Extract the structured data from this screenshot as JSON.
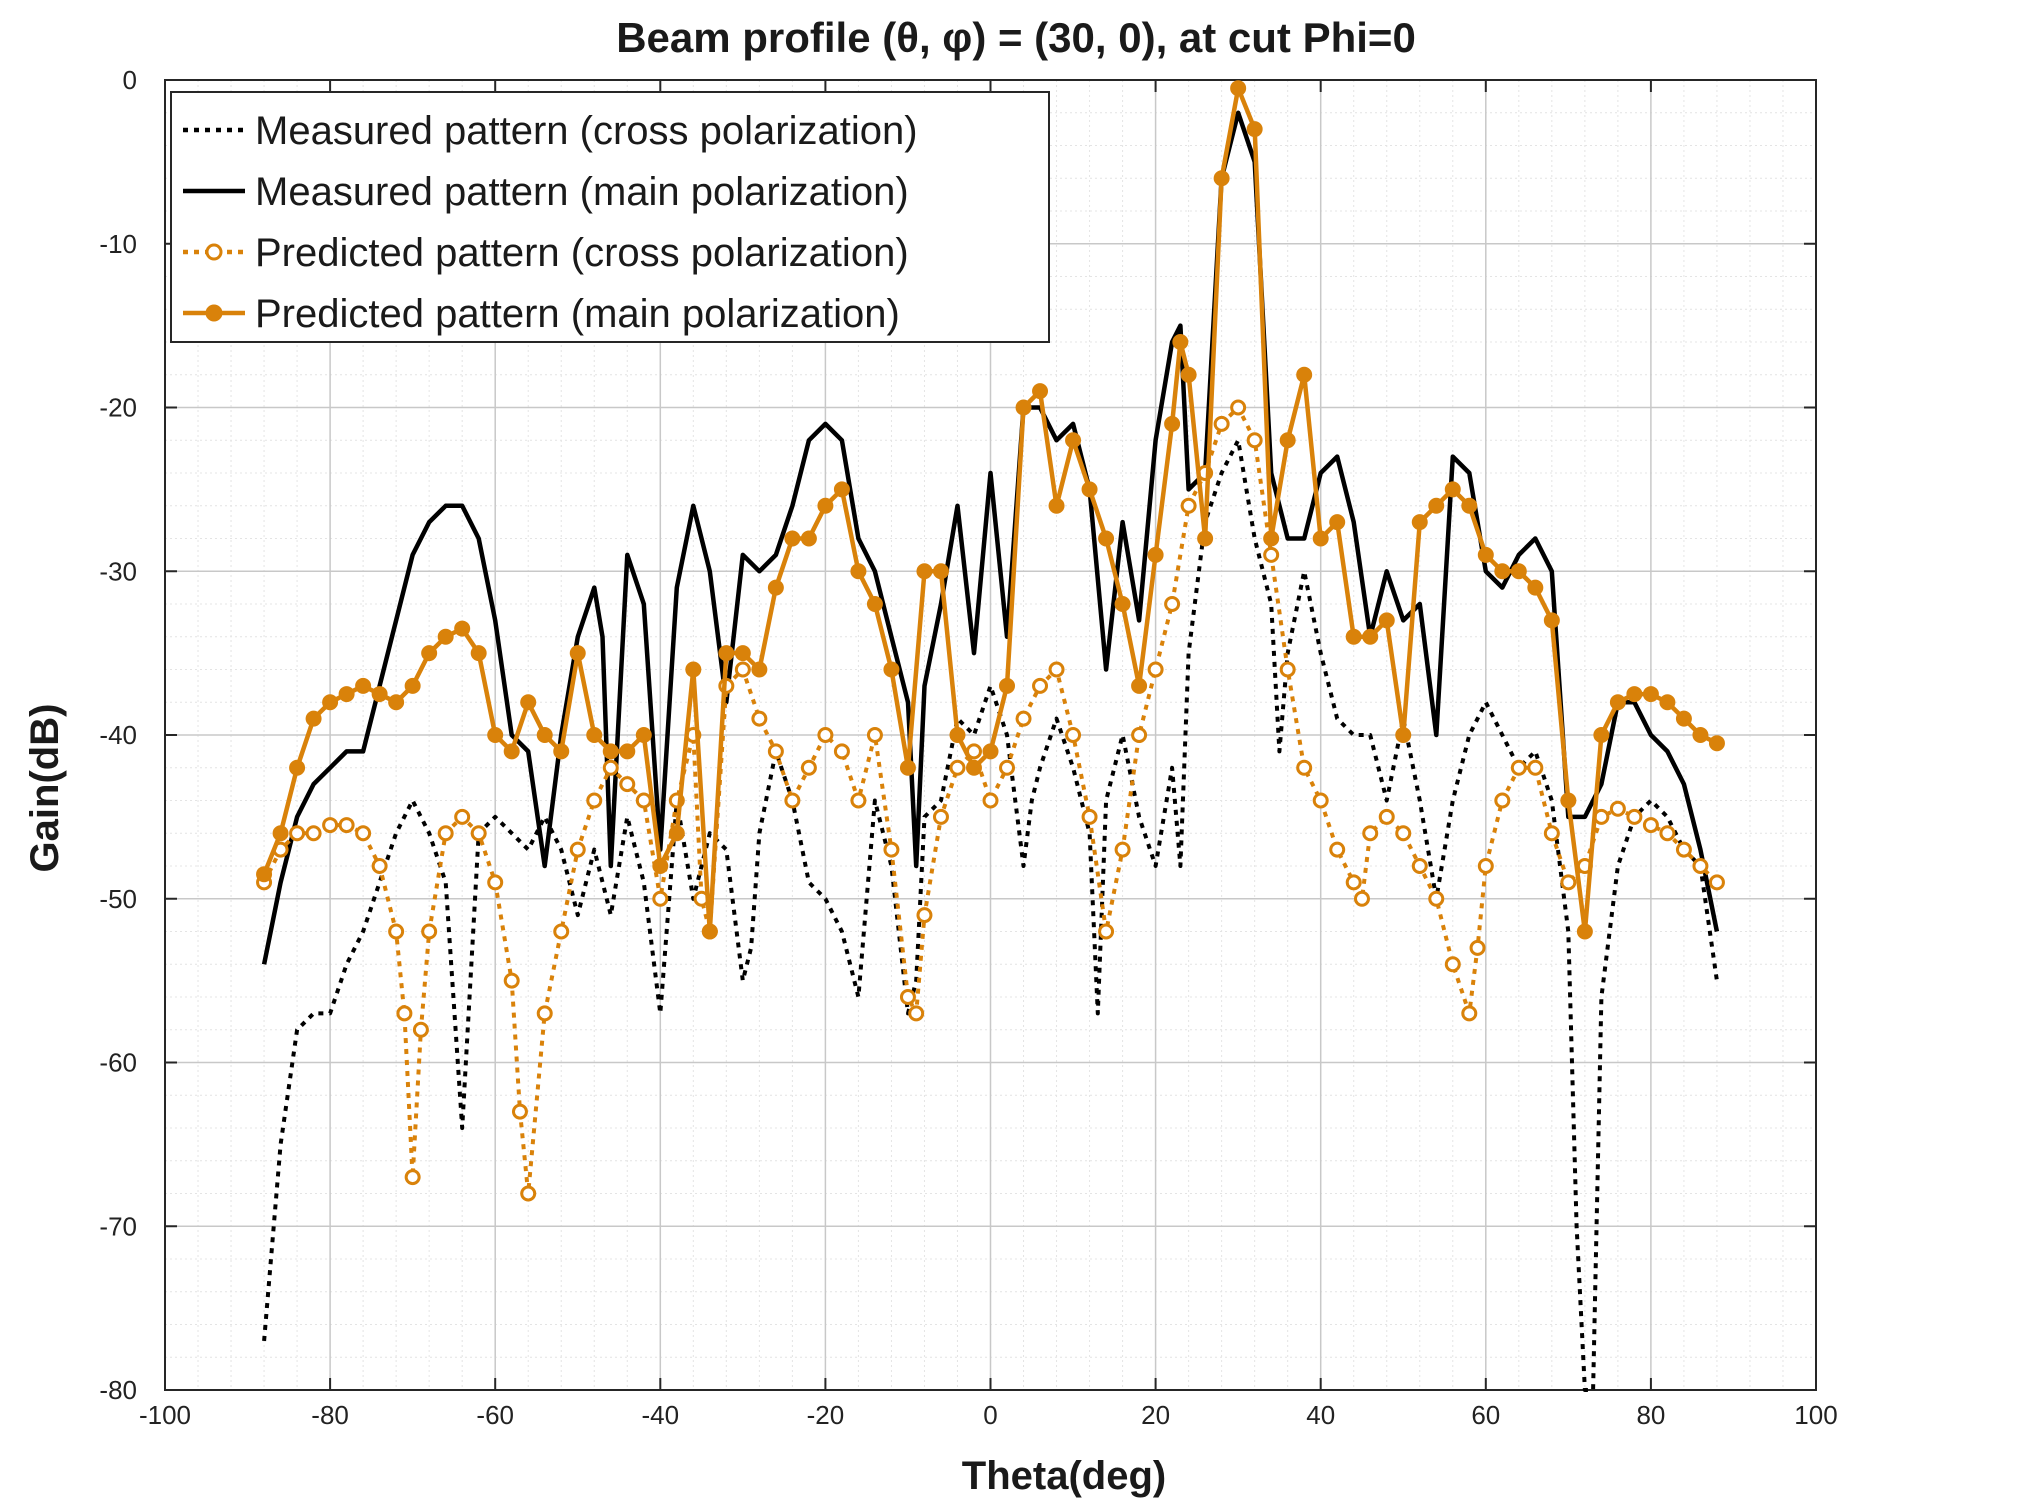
{
  "chart_data": {
    "type": "line",
    "title": "Beam  profile (θ, φ) = (30, 0), at cut Phi=0",
    "xlabel": "Theta(deg)",
    "ylabel": "Gain(dB)",
    "xlim": [
      -100,
      100
    ],
    "ylim": [
      -80,
      0
    ],
    "xticks": [
      -100,
      -80,
      -60,
      -40,
      -20,
      0,
      20,
      40,
      60,
      80,
      100
    ],
    "yticks": [
      0,
      -10,
      -20,
      -30,
      -40,
      -50,
      -60,
      -70,
      -80
    ],
    "grid": "major-and-minor",
    "legend_position": "top-left",
    "colors": {
      "black": "#000000",
      "orange": "#d9820a",
      "grid_major": "#c8c8c8",
      "grid_minor": "#e4e4e4"
    },
    "series": [
      {
        "name": "Measured pattern (cross polarization)",
        "style": "dotted",
        "color": "#000000",
        "marker": "none",
        "x": [
          -88,
          -86,
          -84,
          -82,
          -80,
          -78,
          -76,
          -74,
          -72,
          -70,
          -68,
          -66,
          -64,
          -62,
          -60,
          -58,
          -56,
          -54,
          -52,
          -50,
          -48,
          -46,
          -44,
          -42,
          -40,
          -38,
          -36,
          -34,
          -32,
          -30,
          -29,
          -28,
          -26,
          -24,
          -22,
          -20,
          -18,
          -16,
          -14,
          -12,
          -10,
          -9,
          -8,
          -6,
          -4,
          -2,
          0,
          2,
          4,
          5,
          6,
          8,
          10,
          12,
          13,
          14,
          16,
          18,
          20,
          22,
          23,
          24,
          26,
          28,
          30,
          31,
          32,
          34,
          35,
          36,
          38,
          40,
          42,
          44,
          46,
          48,
          50,
          52,
          54,
          56,
          58,
          60,
          62,
          64,
          66,
          68,
          70,
          71,
          72,
          73,
          74,
          76,
          78,
          80,
          82,
          84,
          86,
          88
        ],
        "y": [
          -77,
          -65,
          -58,
          -57,
          -57,
          -54,
          -52,
          -49,
          -46,
          -44,
          -46,
          -49,
          -64,
          -46,
          -45,
          -46,
          -47,
          -45,
          -47,
          -51,
          -47,
          -51,
          -45,
          -49,
          -57,
          -44,
          -50,
          -46,
          -47,
          -55,
          -53,
          -46,
          -41,
          -44,
          -49,
          -50,
          -52,
          -56,
          -44,
          -48,
          -57,
          -55,
          -45,
          -44,
          -39,
          -40,
          -37,
          -40,
          -48,
          -44,
          -42,
          -39,
          -42,
          -46,
          -57,
          -44,
          -40,
          -45,
          -48,
          -42,
          -48,
          -35,
          -27,
          -24,
          -22,
          -25,
          -28,
          -32,
          -41,
          -35,
          -30,
          -35,
          -39,
          -40,
          -40,
          -44,
          -39,
          -44,
          -50,
          -44,
          -40,
          -38,
          -40,
          -42,
          -41,
          -44,
          -52,
          -70,
          -80,
          -80,
          -56,
          -48,
          -45,
          -44,
          -45,
          -47,
          -48,
          -55
        ]
      },
      {
        "name": "Measured pattern (main polarization)",
        "style": "solid",
        "color": "#000000",
        "marker": "none",
        "x": [
          -88,
          -86,
          -84,
          -82,
          -80,
          -78,
          -76,
          -74,
          -72,
          -70,
          -68,
          -66,
          -64,
          -62,
          -60,
          -58,
          -56,
          -54,
          -52,
          -50,
          -48,
          -47,
          -46,
          -44,
          -42,
          -40,
          -38,
          -36,
          -34,
          -32,
          -30,
          -28,
          -26,
          -24,
          -22,
          -20,
          -18,
          -16,
          -14,
          -12,
          -10,
          -9,
          -8,
          -6,
          -4,
          -2,
          0,
          2,
          4,
          6,
          8,
          10,
          12,
          14,
          16,
          18,
          20,
          22,
          23,
          24,
          26,
          28,
          30,
          32,
          34,
          36,
          38,
          40,
          42,
          44,
          46,
          48,
          50,
          52,
          54,
          56,
          58,
          60,
          62,
          64,
          66,
          68,
          70,
          72,
          74,
          76,
          78,
          80,
          82,
          84,
          86,
          88
        ],
        "y": [
          -54,
          -49,
          -45,
          -43,
          -42,
          -41,
          -41,
          -37,
          -33,
          -29,
          -27,
          -26,
          -26,
          -28,
          -33,
          -40,
          -41,
          -48,
          -40,
          -34,
          -31,
          -34,
          -48,
          -29,
          -32,
          -47,
          -31,
          -26,
          -30,
          -38,
          -29,
          -30,
          -29,
          -26,
          -22,
          -21,
          -22,
          -28,
          -30,
          -34,
          -38,
          -48,
          -37,
          -32,
          -26,
          -35,
          -24,
          -34,
          -20,
          -20,
          -22,
          -21,
          -25,
          -36,
          -27,
          -33,
          -22,
          -16,
          -15,
          -25,
          -24,
          -6,
          -2,
          -5,
          -24,
          -28,
          -28,
          -24,
          -23,
          -27,
          -34,
          -30,
          -33,
          -32,
          -40,
          -23,
          -24,
          -30,
          -31,
          -29,
          -28,
          -30,
          -45,
          -45,
          -43,
          -38,
          -38,
          -40,
          -41,
          -43,
          -47,
          -52
        ]
      },
      {
        "name": "Predicted pattern (cross polarization)",
        "style": "dotted",
        "color": "#d9820a",
        "marker": "open-circle",
        "x": [
          -88,
          -86,
          -84,
          -82,
          -80,
          -78,
          -76,
          -74,
          -72,
          -71,
          -70,
          -69,
          -68,
          -66,
          -64,
          -62,
          -60,
          -58,
          -57,
          -56,
          -54,
          -52,
          -50,
          -48,
          -46,
          -44,
          -42,
          -40,
          -38,
          -36,
          -35,
          -34,
          -32,
          -30,
          -28,
          -26,
          -24,
          -22,
          -20,
          -18,
          -16,
          -14,
          -12,
          -10,
          -9,
          -8,
          -6,
          -4,
          -2,
          0,
          2,
          4,
          6,
          8,
          10,
          12,
          14,
          16,
          18,
          20,
          22,
          24,
          26,
          28,
          30,
          32,
          34,
          36,
          38,
          40,
          42,
          44,
          45,
          46,
          48,
          50,
          52,
          54,
          56,
          58,
          59,
          60,
          62,
          64,
          66,
          68,
          70,
          72,
          74,
          76,
          78,
          80,
          82,
          84,
          86,
          88
        ],
        "y": [
          -49,
          -47,
          -46,
          -46,
          -45.5,
          -45.5,
          -46,
          -48,
          -52,
          -57,
          -67,
          -58,
          -52,
          -46,
          -45,
          -46,
          -49,
          -55,
          -63,
          -68,
          -57,
          -52,
          -47,
          -44,
          -42,
          -43,
          -44,
          -50,
          -44,
          -40,
          -50,
          -52,
          -37,
          -36,
          -39,
          -41,
          -44,
          -42,
          -40,
          -41,
          -44,
          -40,
          -47,
          -56,
          -57,
          -51,
          -45,
          -42,
          -41,
          -44,
          -42,
          -39,
          -37,
          -36,
          -40,
          -45,
          -52,
          -47,
          -40,
          -36,
          -32,
          -26,
          -24,
          -21,
          -20,
          -22,
          -29,
          -36,
          -42,
          -44,
          -47,
          -49,
          -50,
          -46,
          -45,
          -46,
          -48,
          -50,
          -54,
          -57,
          -53,
          -48,
          -44,
          -42,
          -42,
          -46,
          -49,
          -48,
          -45,
          -44.5,
          -45,
          -45.5,
          -46,
          -47,
          -48,
          -49
        ]
      },
      {
        "name": "Predicted pattern (main polarization)",
        "style": "solid",
        "color": "#d9820a",
        "marker": "filled-circle",
        "x": [
          -88,
          -86,
          -84,
          -82,
          -80,
          -78,
          -76,
          -74,
          -72,
          -70,
          -68,
          -66,
          -64,
          -62,
          -60,
          -58,
          -56,
          -54,
          -52,
          -50,
          -48,
          -46,
          -44,
          -42,
          -40,
          -38,
          -36,
          -34,
          -32,
          -30,
          -28,
          -26,
          -24,
          -22,
          -20,
          -18,
          -16,
          -14,
          -12,
          -10,
          -8,
          -6,
          -4,
          -2,
          0,
          2,
          4,
          6,
          8,
          10,
          12,
          14,
          16,
          18,
          20,
          22,
          23,
          24,
          26,
          28,
          30,
          32,
          34,
          36,
          38,
          40,
          42,
          44,
          46,
          48,
          50,
          52,
          54,
          56,
          58,
          60,
          62,
          64,
          66,
          68,
          70,
          72,
          74,
          76,
          78,
          80,
          82,
          84,
          86,
          88
        ],
        "y": [
          -48.5,
          -46,
          -42,
          -39,
          -38,
          -37.5,
          -37,
          -37.5,
          -38,
          -37,
          -35,
          -34,
          -33.5,
          -35,
          -40,
          -41,
          -38,
          -40,
          -41,
          -35,
          -40,
          -41,
          -41,
          -40,
          -48,
          -46,
          -36,
          -52,
          -35,
          -35,
          -36,
          -31,
          -28,
          -28,
          -26,
          -25,
          -30,
          -32,
          -36,
          -42,
          -30,
          -30,
          -40,
          -42,
          -41,
          -37,
          -20,
          -19,
          -26,
          -22,
          -25,
          -28,
          -32,
          -37,
          -29,
          -21,
          -16,
          -18,
          -28,
          -6,
          -0.5,
          -3,
          -28,
          -22,
          -18,
          -28,
          -27,
          -34,
          -34,
          -33,
          -40,
          -27,
          -26,
          -25,
          -26,
          -29,
          -30,
          -30,
          -31,
          -33,
          -44,
          -52,
          -40,
          -38,
          -37.5,
          -37.5,
          -38,
          -39,
          -40,
          -40.5
        ]
      }
    ]
  }
}
